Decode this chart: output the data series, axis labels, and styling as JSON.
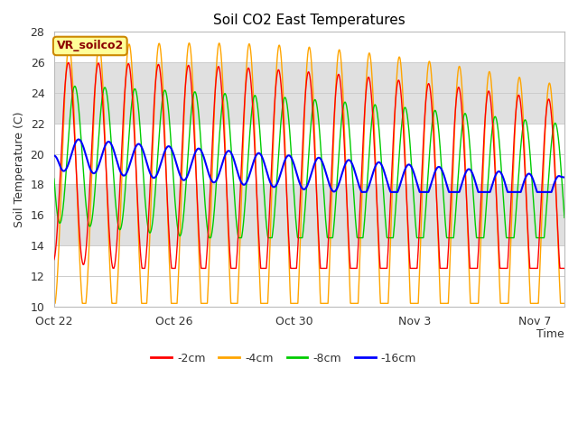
{
  "title": "Soil CO2 East Temperatures",
  "time_label": "Time",
  "ylabel": "Soil Temperature (C)",
  "ylim": [
    10,
    28
  ],
  "xlim_days": [
    0,
    17
  ],
  "x_ticks_days": [
    0,
    4,
    8,
    12,
    16
  ],
  "x_tick_labels": [
    "Oct 22",
    "Oct 26",
    "Oct 30",
    "Nov 3",
    "Nov 7"
  ],
  "colors": {
    "-2cm": "#ff0000",
    "-4cm": "#ffa500",
    "-8cm": "#00cc00",
    "-16cm": "#0000ff"
  },
  "legend_label": "VR_soilco2",
  "background_color": "#ffffff",
  "annotation_box_color": "#ffff99",
  "annotation_text_color": "#8b0000",
  "band_colors": [
    "#ffffff",
    "#e0e0e0",
    "#ffffff",
    "#e0e0e0",
    "#ffffff"
  ],
  "band_ranges": [
    [
      26,
      28
    ],
    [
      22,
      26
    ],
    [
      18,
      22
    ],
    [
      14,
      18
    ],
    [
      10,
      14
    ]
  ],
  "grid_color": "#cccccc"
}
